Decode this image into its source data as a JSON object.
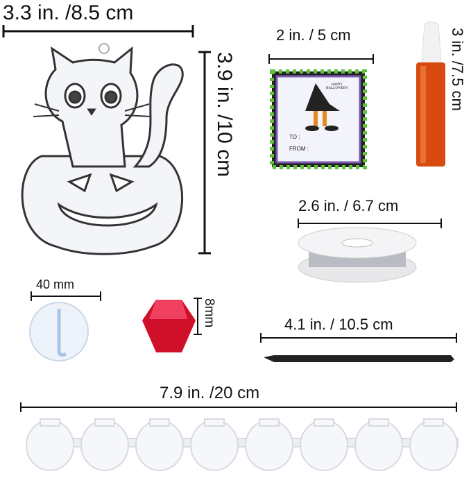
{
  "dimensions": {
    "suncatcher_width": "3.3 in. /8.5 cm",
    "suncatcher_height": "3.9 in. /10 cm",
    "card_width": "2 in. / 5 cm",
    "bottle_height": "3 in. /7.5 cm",
    "wire_spool_width": "2.6 in. / 6.7 cm",
    "suction_cup_width": "40 mm",
    "bead_size": "8mm",
    "brush_length": "4.1 in. / 10.5 cm",
    "paint_strip_length": "7.9 in. /20 cm"
  },
  "card": {
    "greeting_line1": "HAPPY",
    "greeting_line2": "HALLOWEEN",
    "to_label": "TO :",
    "from_label": "FROM :"
  },
  "colors": {
    "card_stripe_green": "#5cc33a",
    "card_border_purple": "#7b5bb3",
    "paint_bottle": "#d84a10",
    "bead": "#d0102a"
  }
}
